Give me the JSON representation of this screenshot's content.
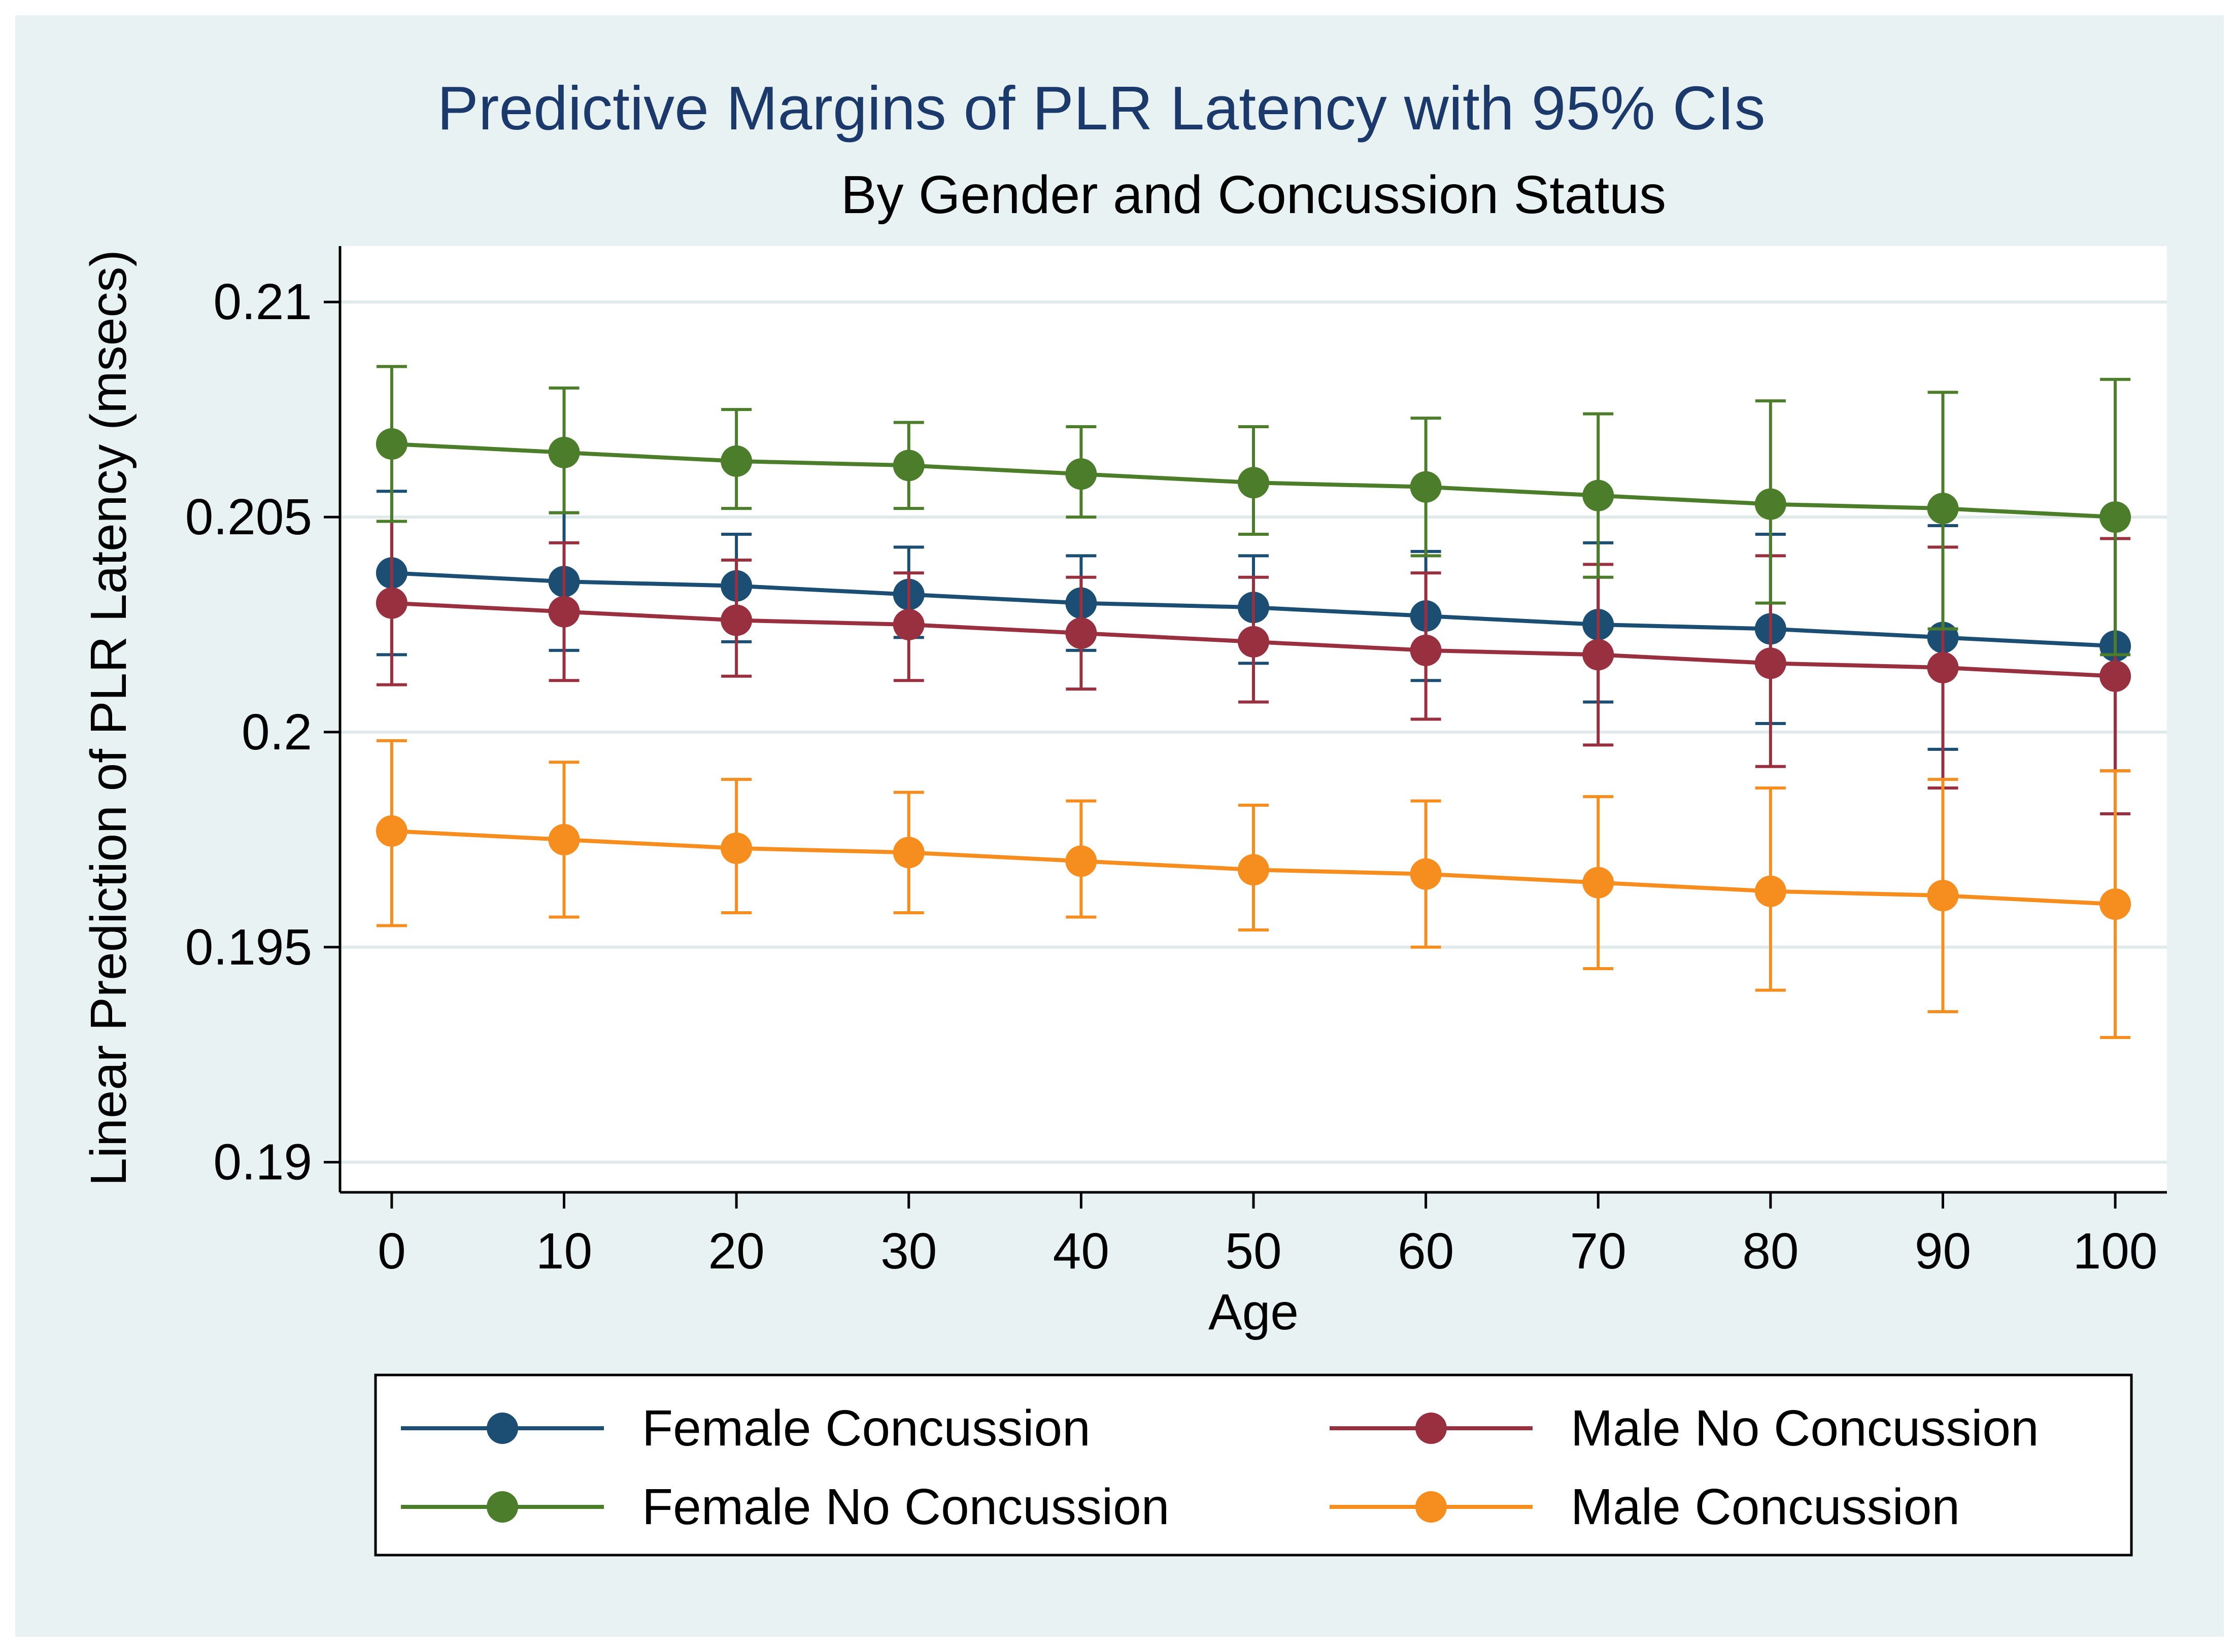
{
  "colors": {
    "outer_background": "#e8f2f2",
    "plot_background": "#ffffff",
    "gridline": "#e1eaea",
    "title": "#1b3a6b",
    "text": "#000000",
    "female_concussion": "#1b4e72",
    "female_no_concussion": "#4c7d2a",
    "male_no_concussion": "#993040",
    "male_concussion": "#f68e1f"
  },
  "chart_data": {
    "type": "line",
    "title": "Predictive Margins of PLR Latency with 95% CIs",
    "subtitle": "By Gender and Concussion Status",
    "xlabel": "Age",
    "ylabel": "Linear Prediction of PLR Latency (msecs)",
    "x": [
      0,
      10,
      20,
      30,
      40,
      50,
      60,
      70,
      80,
      90,
      100
    ],
    "x_tick_labels": [
      "0",
      "10",
      "20",
      "30",
      "40",
      "50",
      "60",
      "70",
      "80",
      "90",
      "100"
    ],
    "y_ticks": [
      0.19,
      0.195,
      0.2,
      0.205,
      0.21
    ],
    "y_tick_labels": [
      "0.19",
      "0.195",
      "0.2",
      "0.205",
      "0.21"
    ],
    "xlim": [
      -3,
      103
    ],
    "ylim": [
      0.1893,
      0.2113
    ],
    "grid": true,
    "legend_position": "bottom",
    "series": [
      {
        "name": "Female Concussion",
        "color_key": "female_concussion",
        "values": [
          0.2037,
          0.2035,
          0.2034,
          0.2032,
          0.203,
          0.2029,
          0.2027,
          0.2025,
          0.2024,
          0.2022,
          0.202
        ],
        "ci_low": [
          0.2018,
          0.2019,
          0.2021,
          0.2022,
          0.2019,
          0.2016,
          0.2012,
          0.2007,
          0.2002,
          0.1996,
          0.1991
        ],
        "ci_high": [
          0.2056,
          0.2051,
          0.2046,
          0.2043,
          0.2041,
          0.2041,
          0.2042,
          0.2044,
          0.2046,
          0.2048,
          0.205
        ]
      },
      {
        "name": "Male No Concussion",
        "color_key": "male_no_concussion",
        "values": [
          0.203,
          0.2028,
          0.2026,
          0.2025,
          0.2023,
          0.2021,
          0.2019,
          0.2018,
          0.2016,
          0.2015,
          0.2013
        ],
        "ci_low": [
          0.2011,
          0.2012,
          0.2013,
          0.2012,
          0.201,
          0.2007,
          0.2003,
          0.1997,
          0.1992,
          0.1987,
          0.1981
        ],
        "ci_high": [
          0.2049,
          0.2044,
          0.204,
          0.2037,
          0.2036,
          0.2036,
          0.2037,
          0.2039,
          0.2041,
          0.2043,
          0.2045
        ]
      },
      {
        "name": "Female No Concussion",
        "color_key": "female_no_concussion",
        "values": [
          0.2067,
          0.2065,
          0.2063,
          0.2062,
          0.206,
          0.2058,
          0.2057,
          0.2055,
          0.2053,
          0.2052,
          0.205
        ],
        "ci_low": [
          0.2049,
          0.2051,
          0.2052,
          0.2052,
          0.205,
          0.2046,
          0.2041,
          0.2036,
          0.203,
          0.2024,
          0.2018
        ],
        "ci_high": [
          0.2085,
          0.208,
          0.2075,
          0.2072,
          0.2071,
          0.2071,
          0.2073,
          0.2074,
          0.2077,
          0.2079,
          0.2082
        ]
      },
      {
        "name": "Male Concussion",
        "color_key": "male_concussion",
        "values": [
          0.1977,
          0.1975,
          0.1973,
          0.1972,
          0.197,
          0.1968,
          0.1967,
          0.1965,
          0.1963,
          0.1962,
          0.196
        ],
        "ci_low": [
          0.1955,
          0.1957,
          0.1958,
          0.1958,
          0.1957,
          0.1954,
          0.195,
          0.1945,
          0.194,
          0.1935,
          0.1929
        ],
        "ci_high": [
          0.1998,
          0.1993,
          0.1989,
          0.1986,
          0.1984,
          0.1983,
          0.1984,
          0.1985,
          0.1987,
          0.1989,
          0.1991
        ]
      }
    ]
  }
}
